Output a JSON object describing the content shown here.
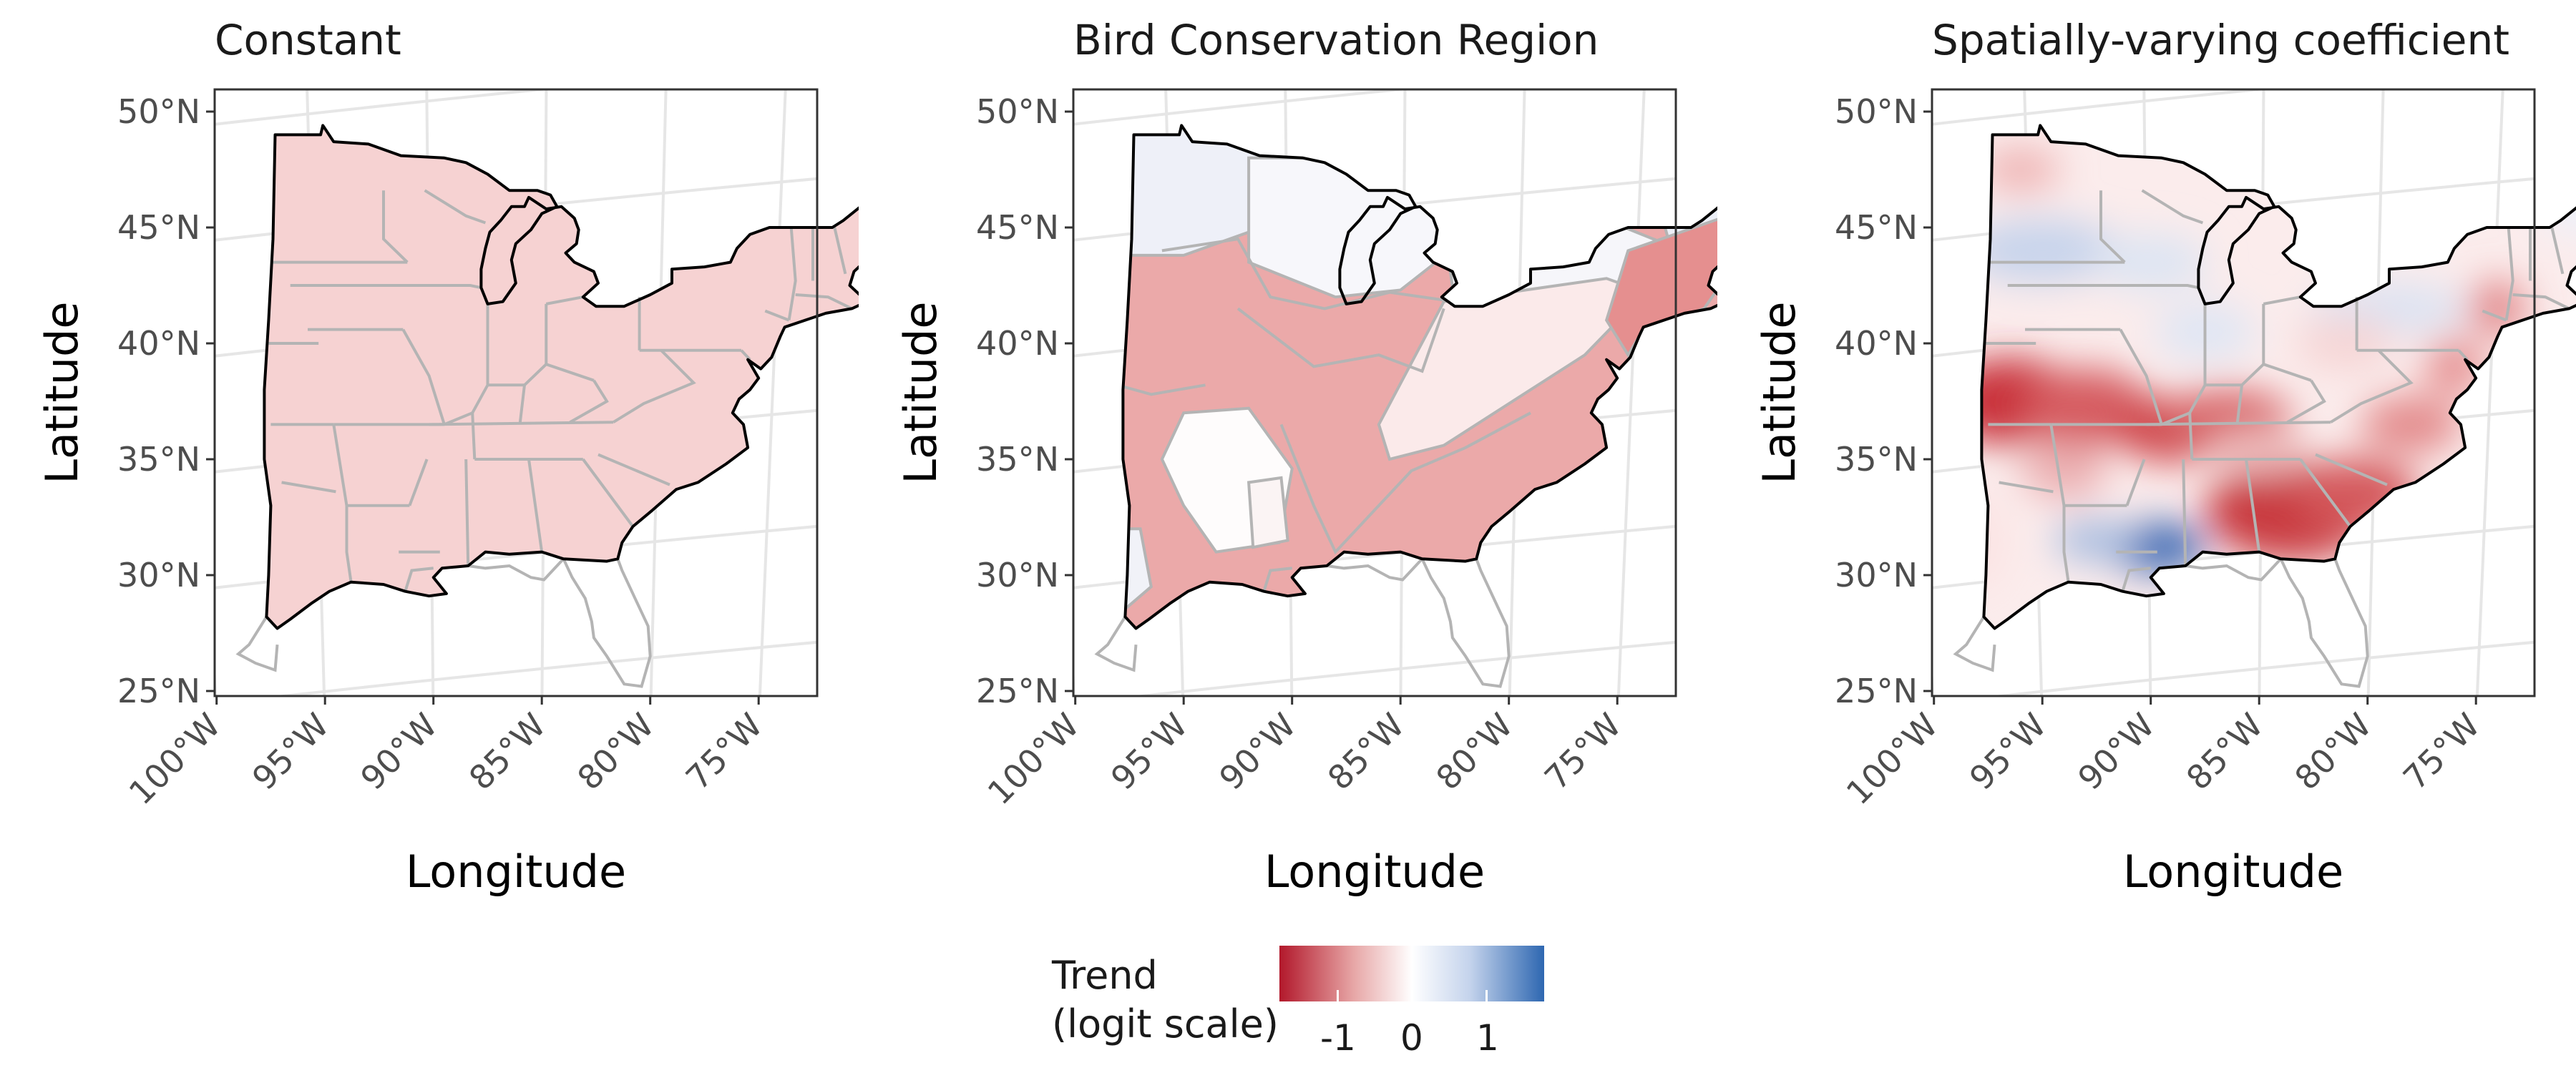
{
  "panels": [
    {
      "id": "constant",
      "title": "Constant",
      "fill_mode": "constant"
    },
    {
      "id": "bcr",
      "title": "Bird Conservation Region",
      "fill_mode": "regions"
    },
    {
      "id": "svc",
      "title": "Spatially-varying coefficient",
      "fill_mode": "spatial"
    }
  ],
  "axes": {
    "xlabel": "Longitude",
    "ylabel": "Latitude",
    "x_ticks": [
      "100°W",
      "95°W",
      "90°W",
      "85°W",
      "80°W",
      "75°W"
    ],
    "y_ticks": [
      "50°N",
      "45°N",
      "40°N",
      "35°N",
      "30°N",
      "25°N"
    ]
  },
  "legend": {
    "title_line1": "Trend",
    "title_line2": "(logit scale)",
    "ticks": [
      "-1",
      "0",
      "1"
    ],
    "colors": {
      "negative": "#b2182b",
      "zero": "#ffffff",
      "positive": "#2e67b1"
    }
  },
  "colors": {
    "constant_fill": "#f6d2d2",
    "state_border": "#b4b4b4",
    "outline": "#000000",
    "grid": "#e6e6e6"
  }
}
